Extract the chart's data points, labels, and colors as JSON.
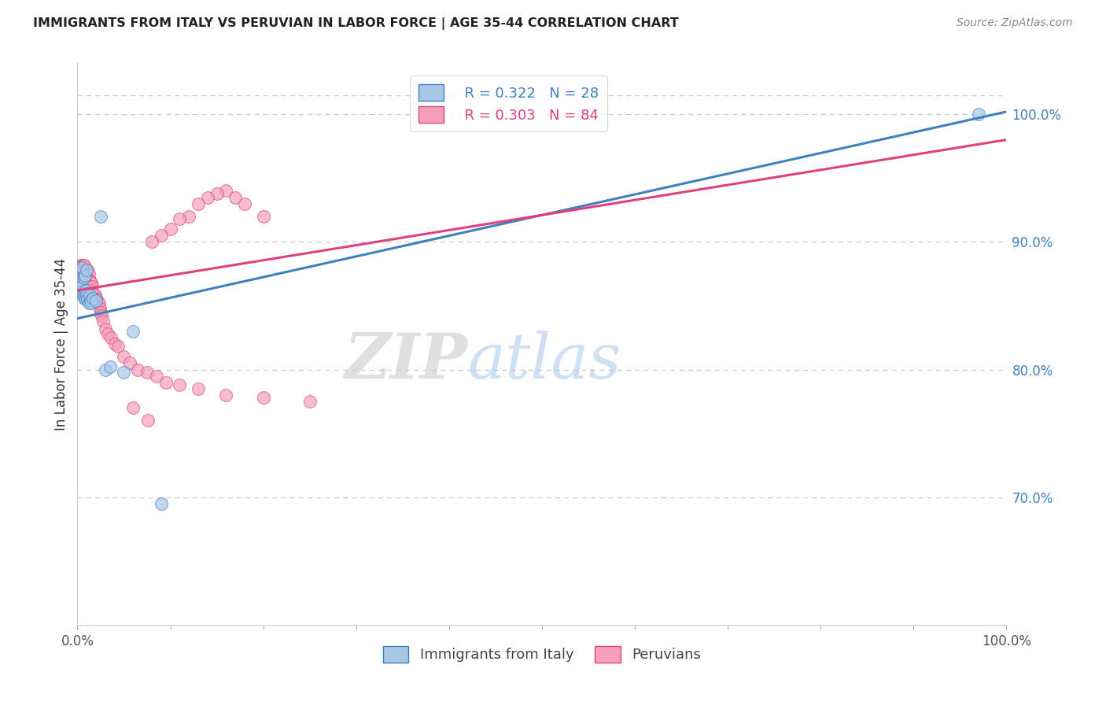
{
  "title": "IMMIGRANTS FROM ITALY VS PERUVIAN IN LABOR FORCE | AGE 35-44 CORRELATION CHART",
  "source": "Source: ZipAtlas.com",
  "ylabel": "In Labor Force | Age 35-44",
  "legend_label_blue": "Immigrants from Italy",
  "legend_label_pink": "Peruvians",
  "R_blue": 0.322,
  "N_blue": 28,
  "R_pink": 0.303,
  "N_pink": 84,
  "color_blue": "#a8c8e8",
  "color_pink": "#f4a0b8",
  "line_color_blue": "#4080c0",
  "line_color_pink": "#e04080",
  "xlim": [
    0.0,
    1.0
  ],
  "ylim": [
    0.6,
    1.04
  ],
  "y_tick_right": [
    0.7,
    0.8,
    0.9,
    1.0
  ],
  "y_tick_right_labels": [
    "70.0%",
    "80.0%",
    "90.0%",
    "100.0%"
  ],
  "watermark_zip": "ZIP",
  "watermark_atlas": "atlas",
  "blue_x": [
    0.003,
    0.004,
    0.004,
    0.005,
    0.005,
    0.006,
    0.007,
    0.007,
    0.008,
    0.008,
    0.009,
    0.009,
    0.01,
    0.01,
    0.011,
    0.012,
    0.013,
    0.014,
    0.015,
    0.017,
    0.02,
    0.025,
    0.03,
    0.035,
    0.05,
    0.06,
    0.09,
    0.97
  ],
  "blue_y": [
    0.87,
    0.86,
    0.878,
    0.865,
    0.88,
    0.858,
    0.872,
    0.856,
    0.86,
    0.874,
    0.855,
    0.862,
    0.858,
    0.878,
    0.855,
    0.852,
    0.858,
    0.854,
    0.852,
    0.856,
    0.854,
    0.92,
    0.8,
    0.802,
    0.798,
    0.83,
    0.695,
    1.0
  ],
  "pink_x": [
    0.002,
    0.003,
    0.003,
    0.004,
    0.004,
    0.004,
    0.005,
    0.005,
    0.005,
    0.005,
    0.006,
    0.006,
    0.006,
    0.006,
    0.007,
    0.007,
    0.007,
    0.007,
    0.007,
    0.008,
    0.008,
    0.008,
    0.008,
    0.009,
    0.009,
    0.009,
    0.009,
    0.009,
    0.01,
    0.01,
    0.01,
    0.011,
    0.011,
    0.012,
    0.012,
    0.013,
    0.013,
    0.014,
    0.014,
    0.015,
    0.015,
    0.016,
    0.016,
    0.017,
    0.018,
    0.019,
    0.02,
    0.021,
    0.022,
    0.023,
    0.024,
    0.025,
    0.026,
    0.028,
    0.03,
    0.033,
    0.036,
    0.04,
    0.044,
    0.05,
    0.056,
    0.065,
    0.075,
    0.085,
    0.095,
    0.11,
    0.13,
    0.16,
    0.2,
    0.25,
    0.2,
    0.18,
    0.17,
    0.16,
    0.15,
    0.14,
    0.13,
    0.12,
    0.11,
    0.1,
    0.09,
    0.08,
    0.076,
    0.06
  ],
  "pink_y": [
    0.878,
    0.87,
    0.878,
    0.882,
    0.87,
    0.875,
    0.878,
    0.87,
    0.875,
    0.882,
    0.875,
    0.87,
    0.878,
    0.882,
    0.87,
    0.875,
    0.878,
    0.87,
    0.882,
    0.87,
    0.878,
    0.875,
    0.87,
    0.875,
    0.87,
    0.878,
    0.875,
    0.87,
    0.878,
    0.87,
    0.875,
    0.87,
    0.878,
    0.87,
    0.875,
    0.868,
    0.87,
    0.868,
    0.862,
    0.868,
    0.862,
    0.86,
    0.865,
    0.86,
    0.858,
    0.858,
    0.855,
    0.855,
    0.852,
    0.852,
    0.848,
    0.845,
    0.842,
    0.838,
    0.832,
    0.828,
    0.825,
    0.82,
    0.818,
    0.81,
    0.805,
    0.8,
    0.798,
    0.795,
    0.79,
    0.788,
    0.785,
    0.78,
    0.778,
    0.775,
    0.92,
    0.93,
    0.935,
    0.94,
    0.938,
    0.935,
    0.93,
    0.92,
    0.918,
    0.91,
    0.905,
    0.9,
    0.76,
    0.77
  ],
  "blue_line": {
    "x0": 0.0,
    "x1": 1.0,
    "y0": 0.84,
    "y1": 1.002
  },
  "pink_line": {
    "x0": 0.0,
    "x1": 1.0,
    "y0": 0.862,
    "y1": 0.98
  }
}
